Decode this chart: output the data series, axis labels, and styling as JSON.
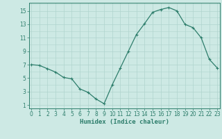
{
  "x": [
    0,
    1,
    2,
    3,
    4,
    5,
    6,
    7,
    8,
    9,
    10,
    11,
    12,
    13,
    14,
    15,
    16,
    17,
    18,
    19,
    20,
    21,
    22,
    23
  ],
  "y": [
    7.0,
    6.9,
    6.4,
    5.9,
    5.1,
    4.9,
    3.4,
    2.9,
    1.9,
    1.2,
    4.0,
    6.5,
    9.0,
    11.5,
    13.1,
    14.8,
    15.2,
    15.5,
    15.0,
    13.0,
    12.5,
    11.0,
    7.8,
    6.5
  ],
  "x_ticks": [
    0,
    1,
    2,
    3,
    4,
    5,
    6,
    7,
    8,
    9,
    10,
    11,
    12,
    13,
    14,
    15,
    16,
    17,
    18,
    19,
    20,
    21,
    22,
    23
  ],
  "y_ticks": [
    1,
    3,
    5,
    7,
    9,
    11,
    13,
    15
  ],
  "xlim": [
    -0.3,
    23.3
  ],
  "ylim": [
    0.5,
    16.2
  ],
  "xlabel": "Humidex (Indice chaleur)",
  "line_color": "#2d7d6b",
  "marker": "+",
  "bg_color": "#cde9e4",
  "grid_color": "#b0d4ce",
  "axis_color": "#2d7d6b",
  "tick_fontsize": 5.5,
  "xlabel_fontsize": 6.5
}
